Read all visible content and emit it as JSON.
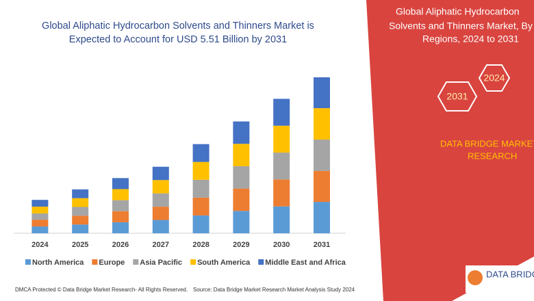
{
  "chart_data": {
    "type": "bar",
    "stacked": true,
    "title": [
      "Global Aliphatic Hydrocarbon Solvents and Thinners Market is",
      "Expected to Account for USD 5.51 Billion by 2031"
    ],
    "categories": [
      "2024",
      "2025",
      "2026",
      "2027",
      "2028",
      "2029",
      "2030",
      "2031"
    ],
    "series": [
      {
        "name": "North America",
        "color": "#5b9bd5",
        "values": [
          0.24,
          0.31,
          0.39,
          0.47,
          0.63,
          0.79,
          0.95,
          1.11
        ]
      },
      {
        "name": "Europe",
        "color": "#ed7d31",
        "values": [
          0.24,
          0.31,
          0.39,
          0.47,
          0.63,
          0.79,
          0.95,
          1.09
        ]
      },
      {
        "name": "Asia Pacific",
        "color": "#a5a5a5",
        "values": [
          0.22,
          0.31,
          0.39,
          0.47,
          0.63,
          0.79,
          0.95,
          1.11
        ]
      },
      {
        "name": "South America",
        "color": "#ffc000",
        "values": [
          0.24,
          0.31,
          0.39,
          0.47,
          0.63,
          0.79,
          0.95,
          1.11
        ]
      },
      {
        "name": "Middle East and Africa",
        "color": "#4472c4",
        "values": [
          0.24,
          0.31,
          0.39,
          0.47,
          0.63,
          0.79,
          0.95,
          1.09
        ]
      }
    ]
  },
  "panel": {
    "heading": [
      "Global Aliphatic Hydrocarbon",
      "Solvents and Thinners Market, By",
      "Regions, 2024 to 2031"
    ],
    "badges": [
      "2024",
      "2031"
    ],
    "brand": [
      "DATA BRIDGE MARKET",
      "RESEARCH"
    ],
    "logo": "DATA BRIDGE"
  },
  "footer": {
    "left": "DMCA Protected © Data Bridge Market Research- All Rights Reserved.",
    "right": "Source: Data Bridge Market Research Market Analysis Study 2024"
  }
}
